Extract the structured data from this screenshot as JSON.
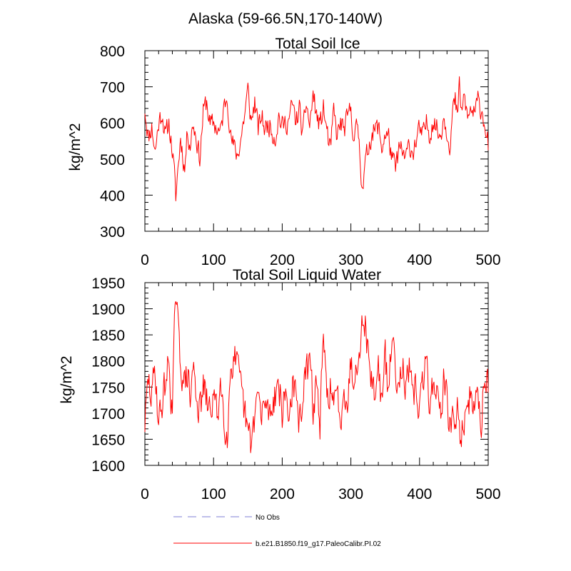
{
  "figure_title": "Alaska (59-66.5N,170-140W)",
  "legend": [
    {
      "label": "No Obs",
      "color": "#9999dd",
      "style": "dashed"
    },
    {
      "label": "b.e21.B1850.f19_g17.PaleoCalibr.PI.02",
      "color": "#ff0000",
      "style": "solid"
    }
  ],
  "chart_data": [
    {
      "type": "line",
      "title": "Total Soil Ice",
      "xlabel": "",
      "ylabel": "kg/m^2",
      "xlim": [
        0,
        500
      ],
      "ylim": [
        300,
        800
      ],
      "xticks": [
        0,
        100,
        200,
        300,
        400,
        500
      ],
      "yticks": [
        300,
        400,
        500,
        600,
        700,
        800
      ],
      "grid": false,
      "anchors": [
        [
          0,
          640
        ],
        [
          5,
          560
        ],
        [
          10,
          590
        ],
        [
          15,
          520
        ],
        [
          20,
          600
        ],
        [
          25,
          630
        ],
        [
          30,
          560
        ],
        [
          35,
          600
        ],
        [
          40,
          520
        ],
        [
          42,
          480
        ],
        [
          45,
          395
        ],
        [
          48,
          470
        ],
        [
          52,
          560
        ],
        [
          58,
          470
        ],
        [
          62,
          580
        ],
        [
          66,
          540
        ],
        [
          70,
          600
        ],
        [
          75,
          560
        ],
        [
          80,
          500
        ],
        [
          85,
          630
        ],
        [
          90,
          660
        ],
        [
          95,
          590
        ],
        [
          100,
          600
        ],
        [
          110,
          570
        ],
        [
          115,
          640
        ],
        [
          120,
          680
        ],
        [
          125,
          560
        ],
        [
          130,
          530
        ],
        [
          135,
          510
        ],
        [
          140,
          560
        ],
        [
          145,
          620
        ],
        [
          150,
          690
        ],
        [
          155,
          600
        ],
        [
          160,
          660
        ],
        [
          165,
          580
        ],
        [
          170,
          620
        ],
        [
          175,
          580
        ],
        [
          180,
          600
        ],
        [
          190,
          560
        ],
        [
          195,
          620
        ],
        [
          200,
          590
        ],
        [
          210,
          610
        ],
        [
          215,
          650
        ],
        [
          220,
          600
        ],
        [
          225,
          640
        ],
        [
          230,
          560
        ],
        [
          235,
          660
        ],
        [
          240,
          590
        ],
        [
          245,
          680
        ],
        [
          250,
          620
        ],
        [
          255,
          590
        ],
        [
          260,
          640
        ],
        [
          265,
          580
        ],
        [
          270,
          520
        ],
        [
          275,
          630
        ],
        [
          280,
          560
        ],
        [
          285,
          600
        ],
        [
          290,
          580
        ],
        [
          300,
          640
        ],
        [
          305,
          550
        ],
        [
          310,
          600
        ],
        [
          315,
          460
        ],
        [
          318,
          430
        ],
        [
          322,
          500
        ],
        [
          330,
          570
        ],
        [
          340,
          590
        ],
        [
          345,
          530
        ],
        [
          350,
          570
        ],
        [
          355,
          560
        ],
        [
          360,
          500
        ],
        [
          365,
          470
        ],
        [
          370,
          530
        ],
        [
          380,
          500
        ],
        [
          385,
          540
        ],
        [
          390,
          520
        ],
        [
          400,
          580
        ],
        [
          405,
          560
        ],
        [
          410,
          600
        ],
        [
          415,
          570
        ],
        [
          420,
          610
        ],
        [
          430,
          560
        ],
        [
          435,
          620
        ],
        [
          440,
          580
        ],
        [
          445,
          540
        ],
        [
          448,
          630
        ],
        [
          452,
          660
        ],
        [
          455,
          610
        ],
        [
          458,
          700
        ],
        [
          462,
          620
        ],
        [
          465,
          680
        ],
        [
          470,
          610
        ],
        [
          475,
          640
        ],
        [
          480,
          620
        ],
        [
          485,
          660
        ],
        [
          490,
          640
        ],
        [
          495,
          600
        ],
        [
          500,
          540
        ]
      ],
      "series": [
        {
          "name": "b.e21.B1850.f19_g17.PaleoCalibr.PI.02",
          "color": "#ff0000",
          "noise": 28,
          "seed": 11
        }
      ]
    },
    {
      "type": "line",
      "title": "Total Soil Liquid Water",
      "xlabel": "",
      "ylabel": "kg/m^2",
      "xlim": [
        0,
        500
      ],
      "ylim": [
        1600,
        1950
      ],
      "xticks": [
        0,
        100,
        200,
        300,
        400,
        500
      ],
      "yticks": [
        1600,
        1650,
        1700,
        1750,
        1800,
        1850,
        1900,
        1950
      ],
      "grid": false,
      "anchors": [
        [
          0,
          1680
        ],
        [
          5,
          1760
        ],
        [
          10,
          1730
        ],
        [
          15,
          1790
        ],
        [
          20,
          1680
        ],
        [
          25,
          1720
        ],
        [
          30,
          1760
        ],
        [
          35,
          1800
        ],
        [
          40,
          1700
        ],
        [
          43,
          1850
        ],
        [
          45,
          1930
        ],
        [
          48,
          1860
        ],
        [
          52,
          1800
        ],
        [
          58,
          1750
        ],
        [
          62,
          1780
        ],
        [
          66,
          1720
        ],
        [
          70,
          1790
        ],
        [
          75,
          1740
        ],
        [
          80,
          1700
        ],
        [
          85,
          1750
        ],
        [
          90,
          1720
        ],
        [
          95,
          1700
        ],
        [
          100,
          1740
        ],
        [
          105,
          1690
        ],
        [
          110,
          1760
        ],
        [
          115,
          1700
        ],
        [
          120,
          1660
        ],
        [
          125,
          1790
        ],
        [
          130,
          1810
        ],
        [
          135,
          1780
        ],
        [
          140,
          1740
        ],
        [
          145,
          1700
        ],
        [
          150,
          1660
        ],
        [
          155,
          1640
        ],
        [
          160,
          1700
        ],
        [
          165,
          1740
        ],
        [
          170,
          1680
        ],
        [
          175,
          1730
        ],
        [
          180,
          1700
        ],
        [
          190,
          1740
        ],
        [
          195,
          1760
        ],
        [
          200,
          1700
        ],
        [
          205,
          1740
        ],
        [
          210,
          1690
        ],
        [
          215,
          1760
        ],
        [
          220,
          1720
        ],
        [
          225,
          1680
        ],
        [
          230,
          1740
        ],
        [
          240,
          1800
        ],
        [
          245,
          1710
        ],
        [
          250,
          1760
        ],
        [
          255,
          1680
        ],
        [
          260,
          1840
        ],
        [
          265,
          1720
        ],
        [
          270,
          1760
        ],
        [
          275,
          1700
        ],
        [
          280,
          1740
        ],
        [
          285,
          1690
        ],
        [
          290,
          1760
        ],
        [
          295,
          1720
        ],
        [
          300,
          1800
        ],
        [
          305,
          1760
        ],
        [
          310,
          1820
        ],
        [
          315,
          1860
        ],
        [
          320,
          1880
        ],
        [
          325,
          1820
        ],
        [
          330,
          1760
        ],
        [
          335,
          1740
        ],
        [
          340,
          1790
        ],
        [
          345,
          1720
        ],
        [
          350,
          1800
        ],
        [
          355,
          1740
        ],
        [
          360,
          1850
        ],
        [
          365,
          1790
        ],
        [
          370,
          1760
        ],
        [
          375,
          1810
        ],
        [
          380,
          1740
        ],
        [
          385,
          1780
        ],
        [
          390,
          1720
        ],
        [
          395,
          1760
        ],
        [
          400,
          1700
        ],
        [
          405,
          1760
        ],
        [
          410,
          1800
        ],
        [
          415,
          1720
        ],
        [
          420,
          1760
        ],
        [
          425,
          1740
        ],
        [
          430,
          1700
        ],
        [
          435,
          1760
        ],
        [
          440,
          1720
        ],
        [
          445,
          1680
        ],
        [
          450,
          1680
        ],
        [
          455,
          1700
        ],
        [
          460,
          1660
        ],
        [
          465,
          1690
        ],
        [
          470,
          1680
        ],
        [
          475,
          1760
        ],
        [
          480,
          1700
        ],
        [
          485,
          1740
        ],
        [
          490,
          1680
        ],
        [
          495,
          1790
        ],
        [
          500,
          1760
        ]
      ],
      "series": [
        {
          "name": "b.e21.B1850.f19_g17.PaleoCalibr.PI.02",
          "color": "#ff0000",
          "noise": 32,
          "seed": 29
        }
      ]
    }
  ]
}
